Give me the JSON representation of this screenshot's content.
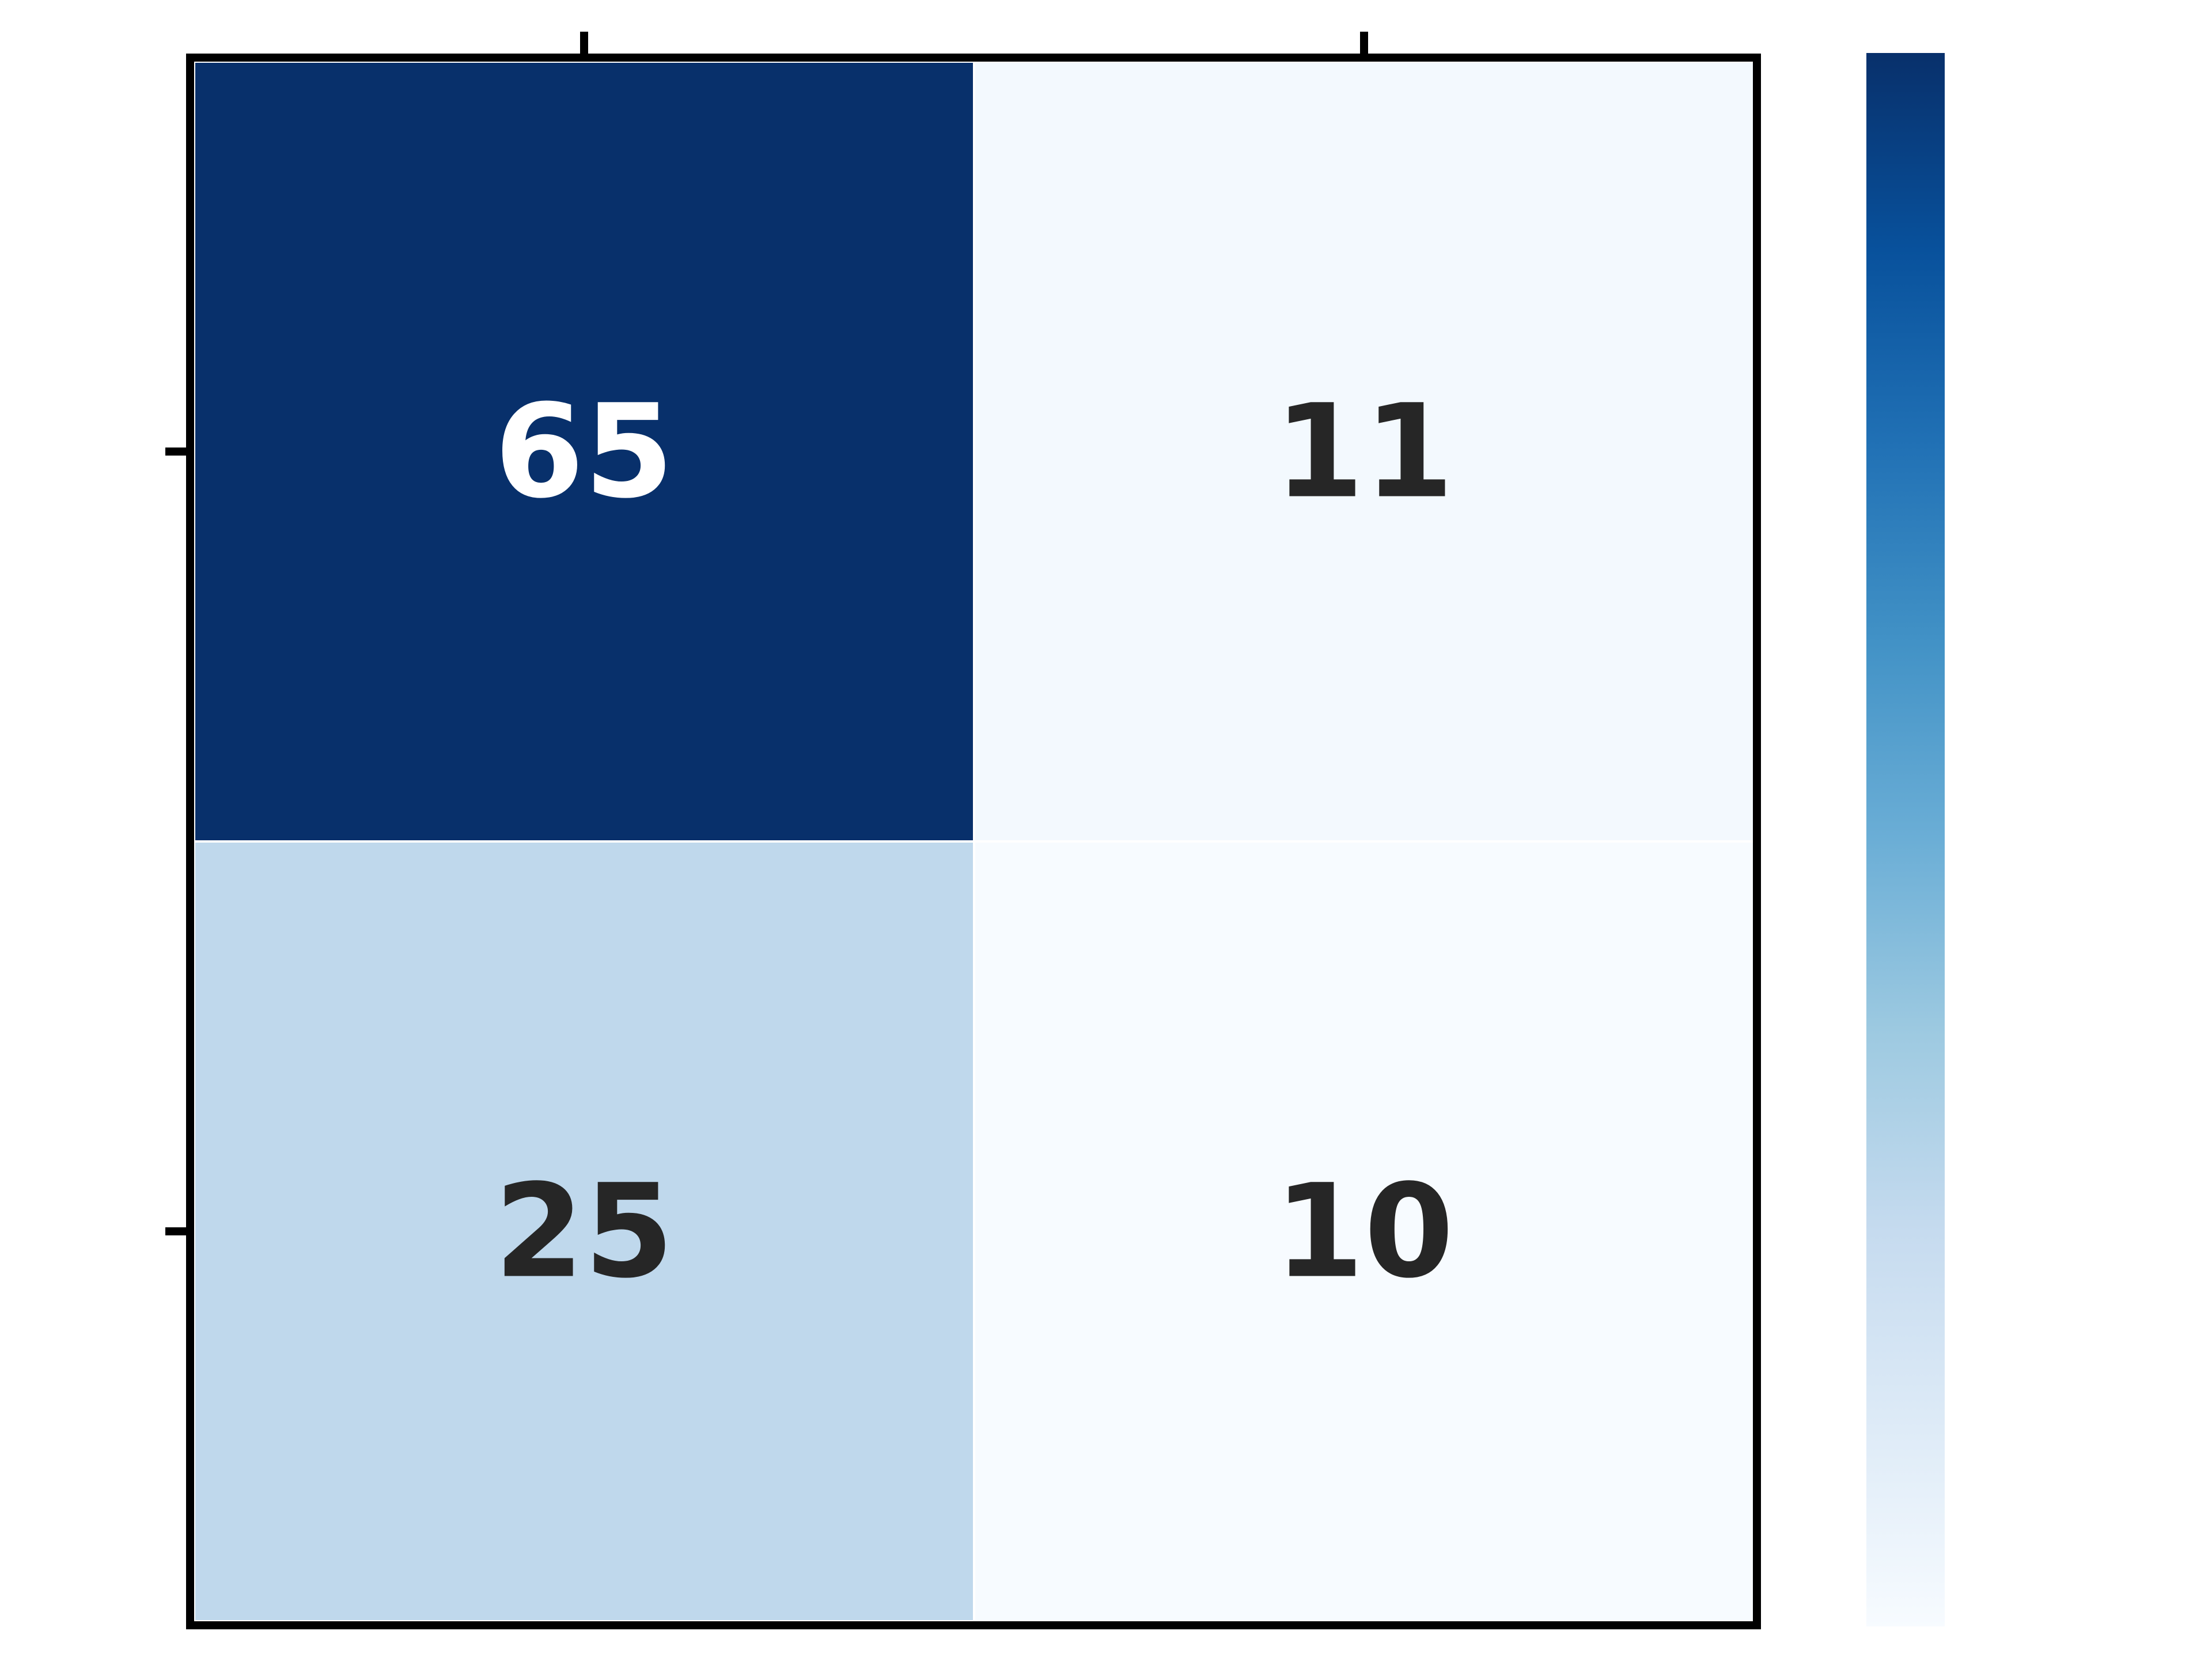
{
  "chart_data": {
    "type": "heatmap",
    "rows": 2,
    "cols": 2,
    "values": [
      [
        65,
        11
      ],
      [
        25,
        10
      ]
    ],
    "annotation_colors": [
      [
        "#ffffff",
        "#262626"
      ],
      [
        "#262626",
        "#262626"
      ]
    ],
    "colormap": "Blues",
    "vmin": 10,
    "vmax": 65,
    "colorbar": true,
    "colorbar_tick_labels": [],
    "x_tick_labels": [],
    "y_tick_labels": [],
    "title": "",
    "xlabel": "",
    "ylabel": "",
    "grid": false
  }
}
